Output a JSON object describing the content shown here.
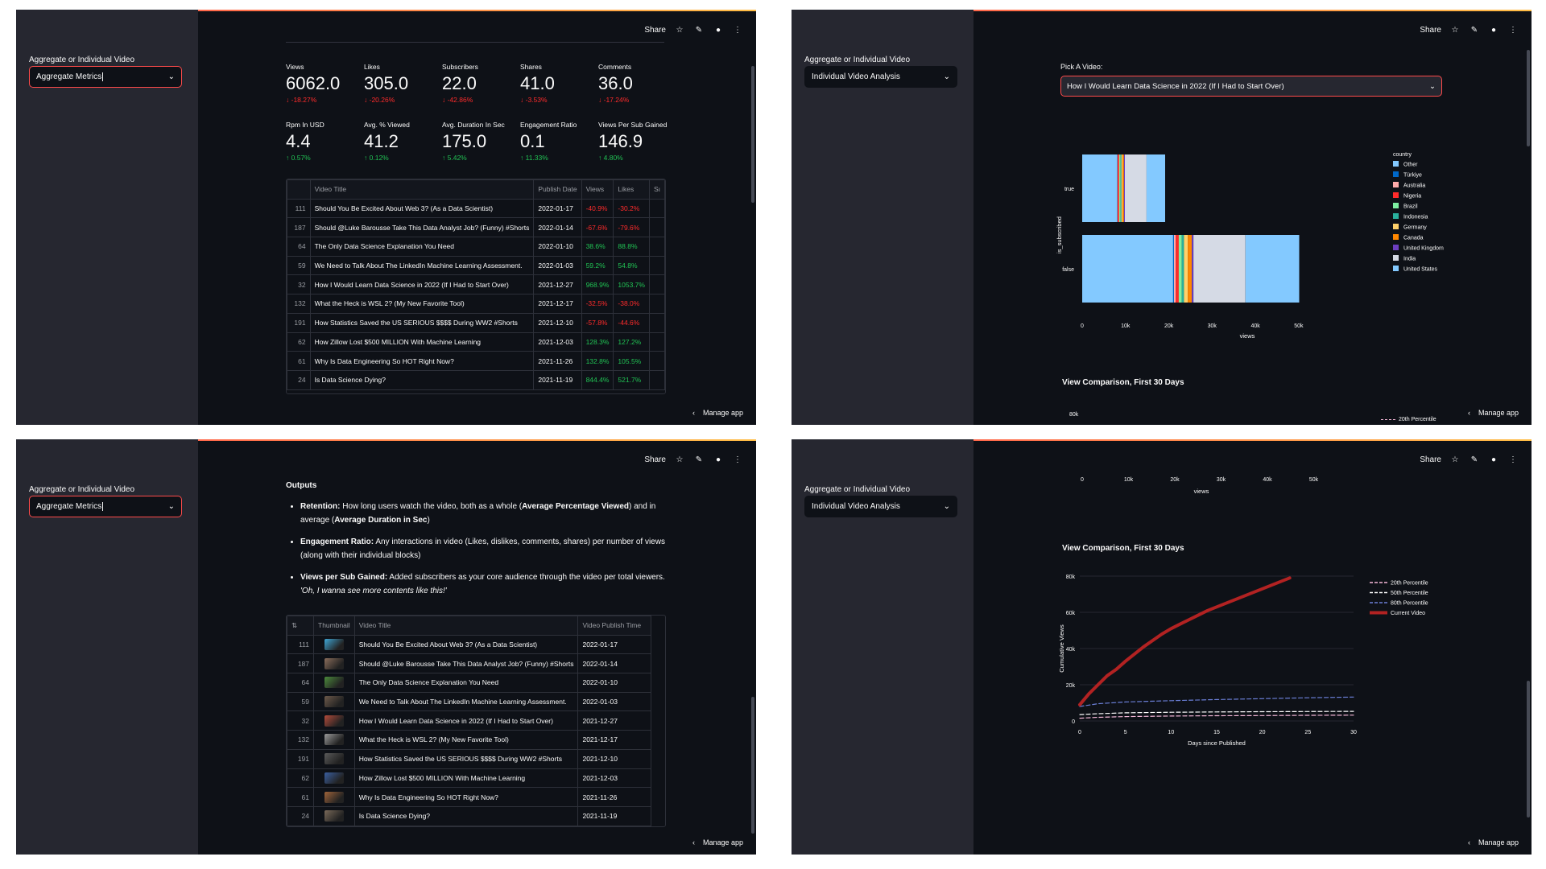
{
  "common": {
    "share": "Share",
    "manage_app": "Manage app",
    "sidebar_label": "Aggregate or Individual Video"
  },
  "panel1": {
    "select_value": "Aggregate Metrics",
    "metrics": [
      {
        "label": "Views",
        "value": "6062.0",
        "delta": "-18.27%",
        "dir": "neg"
      },
      {
        "label": "Likes",
        "value": "305.0",
        "delta": "-20.26%",
        "dir": "neg"
      },
      {
        "label": "Subscribers",
        "value": "22.0",
        "delta": "-42.86%",
        "dir": "neg"
      },
      {
        "label": "Shares",
        "value": "41.0",
        "delta": "-3.53%",
        "dir": "neg"
      },
      {
        "label": "Comments",
        "value": "36.0",
        "delta": "-17.24%",
        "dir": "neg"
      },
      {
        "label": "Rpm In USD",
        "value": "4.4",
        "delta": "0.57%",
        "dir": "pos"
      },
      {
        "label": "Avg. % Viewed",
        "value": "41.2",
        "delta": "0.12%",
        "dir": "pos"
      },
      {
        "label": "Avg. Duration In Sec",
        "value": "175.0",
        "delta": "5.42%",
        "dir": "pos"
      },
      {
        "label": "Engagement Ratio",
        "value": "0.1",
        "delta": "11.33%",
        "dir": "pos"
      },
      {
        "label": "Views Per Sub Gained",
        "value": "146.9",
        "delta": "4.80%",
        "dir": "pos"
      }
    ],
    "table": {
      "headers": [
        "Video Title",
        "Publish Date",
        "Views",
        "Likes",
        "Sı"
      ],
      "rows": [
        {
          "idx": "111",
          "title": "Should You Be Excited About Web 3? (As a Data Scientist)",
          "date": "2022-01-17",
          "views": "-40.9%",
          "likes": "-30.2%"
        },
        {
          "idx": "187",
          "title": "Should  @Luke Barousse Take This Data Analyst Job? (Funny) #Shorts",
          "date": "2022-01-14",
          "views": "-67.6%",
          "likes": "-79.6%"
        },
        {
          "idx": "64",
          "title": "The Only Data Science Explanation You Need",
          "date": "2022-01-10",
          "views": "38.6%",
          "likes": "88.8%"
        },
        {
          "idx": "59",
          "title": "We Need to Talk About The LinkedIn Machine Learning Assessment.",
          "date": "2022-01-03",
          "views": "59.2%",
          "likes": "54.8%"
        },
        {
          "idx": "32",
          "title": "How I Would Learn Data Science in 2022 (If I Had to Start Over)",
          "date": "2021-12-27",
          "views": "968.9%",
          "likes": "1053.7%"
        },
        {
          "idx": "132",
          "title": "What the Heck is WSL 2? (My New Favorite Tool)",
          "date": "2021-12-17",
          "views": "-32.5%",
          "likes": "-38.0%"
        },
        {
          "idx": "191",
          "title": "How Statistics Saved the US SERIOUS $$$$ During WW2 #Shorts",
          "date": "2021-12-10",
          "views": "-57.8%",
          "likes": "-44.6%"
        },
        {
          "idx": "62",
          "title": "How Zillow Lost $500 MILLION With Machine Learning",
          "date": "2021-12-03",
          "views": "128.3%",
          "likes": "127.2%"
        },
        {
          "idx": "61",
          "title": "Why Is Data Engineering So HOT Right Now?",
          "date": "2021-11-26",
          "views": "132.8%",
          "likes": "105.5%"
        },
        {
          "idx": "24",
          "title": "Is Data Science Dying?",
          "date": "2021-11-19",
          "views": "844.4%",
          "likes": "521.7%"
        }
      ]
    }
  },
  "panel2": {
    "select_value": "Individual Video Analysis",
    "pick_label": "Pick A Video:",
    "pick_value": "How I Would Learn Data Science in 2022 (If I Had to Start Over)",
    "view_comparison_title": "View Comparison, First 30 Days",
    "partial_y_tick": "80k",
    "partial_legend": "20th Percentile"
  },
  "panel3": {
    "select_value": "Aggregate Metrics",
    "outputs_title": "Outputs",
    "bullets": [
      {
        "term": "Retention:",
        "pre": "How long users watch the video, both as a whole (",
        "b1": "Average Percentage Viewed",
        "mid": ") and in average (",
        "b2": "Average Duration in Sec",
        "post": ")"
      },
      {
        "term": "Engagement Ratio:",
        "text": "Any interactions in video (Likes, dislikes, comments, shares) per number of views (along with their individual blocks)"
      },
      {
        "term": "Views per Sub Gained:",
        "text": "Added subscribers as your core audience through the video per total viewers.",
        "quote": "'Oh, I wanna see more contents like this!'"
      }
    ],
    "table": {
      "headers": [
        "Thumbnail",
        "Video Title",
        "Video Publish Time"
      ],
      "rows": [
        {
          "idx": "111",
          "title": "Should You Be Excited About Web 3? (As a Data Scientist)",
          "date": "2022-01-17",
          "color": "#3fa7d6"
        },
        {
          "idx": "187",
          "title": "Should  @Luke Barousse Take This Data Analyst Job? (Funny) #Shorts",
          "date": "2022-01-14",
          "color": "#8a6d5b"
        },
        {
          "idx": "64",
          "title": "The Only Data Science Explanation You Need",
          "date": "2022-01-10",
          "color": "#4b8b3b"
        },
        {
          "idx": "59",
          "title": "We Need to Talk About The LinkedIn Machine Learning Assessment.",
          "date": "2022-01-03",
          "color": "#6d5a4a"
        },
        {
          "idx": "32",
          "title": "How I Would Learn Data Science in 2022 (If I Had to Start Over)",
          "date": "2021-12-27",
          "color": "#b34a3a"
        },
        {
          "idx": "132",
          "title": "What the Heck is WSL 2? (My New Favorite Tool)",
          "date": "2021-12-17",
          "color": "#9a9a9a"
        },
        {
          "idx": "191",
          "title": "How Statistics Saved the US SERIOUS $$$$ During WW2 #Shorts",
          "date": "2021-12-10",
          "color": "#5a5a5a"
        },
        {
          "idx": "62",
          "title": "How Zillow Lost $500 MILLION With Machine Learning",
          "date": "2021-12-03",
          "color": "#3a5fa0"
        },
        {
          "idx": "61",
          "title": "Why Is Data Engineering So HOT Right Now?",
          "date": "2021-11-26",
          "color": "#a0643a"
        },
        {
          "idx": "24",
          "title": "Is Data Science Dying?",
          "date": "2021-11-19",
          "color": "#7a6a5a"
        }
      ]
    }
  },
  "panel4": {
    "select_value": "Individual Video Analysis",
    "view_comparison_title": "View Comparison, First 30 Days"
  },
  "chart_data": [
    {
      "type": "bar",
      "orientation": "horizontal-stacked",
      "xlabel": "views",
      "ylabel": "is_subscribed",
      "xlim": [
        0,
        55000
      ],
      "x_ticks": [
        "0",
        "10k",
        "20k",
        "30k",
        "40k",
        "50k"
      ],
      "categories": [
        "true",
        "false"
      ],
      "legend_title": "country",
      "legend": [
        "Other",
        "Türkiye",
        "Australia",
        "Nigeria",
        "Brazil",
        "Indonesia",
        "Germany",
        "Canada",
        "United Kingdom",
        "India",
        "United States"
      ],
      "colors": {
        "Other": "#83c9ff",
        "Türkiye": "#0068c9",
        "Australia": "#ffabab",
        "Nigeria": "#ff2b2b",
        "Brazil": "#7defa1",
        "Indonesia": "#29b09d",
        "Germany": "#ffd16a",
        "Canada": "#ff8700",
        "United Kingdom": "#6d3fc0",
        "India": "#d5dae5",
        "United States": "#83c9ff"
      },
      "series": [
        {
          "name": "true",
          "values": {
            "Other": 8000,
            "Türkiye": 100,
            "Australia": 150,
            "Nigeria": 300,
            "Brazil": 300,
            "Indonesia": 200,
            "Germany": 250,
            "Canada": 350,
            "United Kingdom": 200,
            "India": 5000,
            "United States": 4300
          }
        },
        {
          "name": "false",
          "values": {
            "Other": 21000,
            "Türkiye": 200,
            "Australia": 400,
            "Nigeria": 700,
            "Brazil": 700,
            "Indonesia": 500,
            "Germany": 900,
            "Canada": 900,
            "United Kingdom": 400,
            "India": 12000,
            "United States": 12400
          }
        }
      ]
    },
    {
      "type": "line",
      "title": "View Comparison, First 30 Days",
      "xlabel": "Days since Published",
      "ylabel": "Cumulative Views",
      "xlim": [
        0,
        30
      ],
      "ylim": [
        0,
        80000
      ],
      "x_ticks": [
        "0",
        "5",
        "10",
        "15",
        "20",
        "25",
        "30"
      ],
      "y_ticks": [
        "0",
        "20k",
        "40k",
        "60k",
        "80k"
      ],
      "legend": [
        "20th Percentile",
        "50th Percentile",
        "80th Percentile",
        "Current Video"
      ],
      "series": [
        {
          "name": "20th Percentile",
          "style": "dash",
          "color": "#f5b8d8",
          "x": [
            0,
            2,
            5,
            10,
            15,
            20,
            25,
            30
          ],
          "values": [
            1500,
            2000,
            2400,
            2700,
            2900,
            3000,
            3100,
            3200
          ]
        },
        {
          "name": "50th Percentile",
          "style": "dash",
          "color": "#ffffff",
          "x": [
            0,
            2,
            5,
            10,
            15,
            20,
            25,
            30
          ],
          "values": [
            3500,
            4000,
            4500,
            4800,
            5000,
            5100,
            5200,
            5300
          ]
        },
        {
          "name": "80th Percentile",
          "style": "dash",
          "color": "#6b7fd7",
          "x": [
            0,
            2,
            5,
            10,
            15,
            20,
            25,
            30
          ],
          "values": [
            8000,
            9500,
            10500,
            11200,
            11800,
            12300,
            12800,
            13200
          ]
        },
        {
          "name": "Current Video",
          "style": "solid",
          "color": "#b22222",
          "x": [
            0,
            1,
            2,
            3,
            4,
            5,
            6,
            7,
            8,
            9,
            10,
            11,
            12,
            13,
            14,
            15,
            16,
            17,
            18,
            19,
            20,
            21,
            22,
            23
          ],
          "values": [
            9000,
            15000,
            20000,
            25000,
            28500,
            33000,
            37000,
            41000,
            44500,
            48000,
            51000,
            53500,
            56000,
            58500,
            61000,
            63000,
            65000,
            67000,
            69000,
            71000,
            73000,
            75000,
            77000,
            79000
          ]
        }
      ]
    }
  ]
}
